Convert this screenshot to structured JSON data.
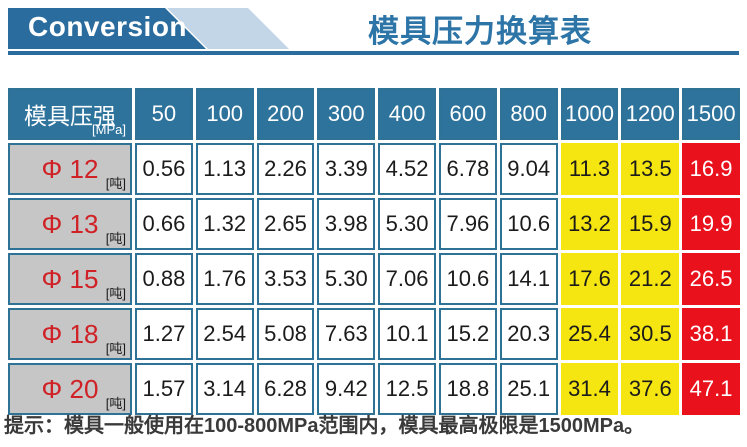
{
  "header": {
    "badge": "Conversion",
    "title": "模具压力换算表"
  },
  "table": {
    "corner": {
      "label": "模具压强",
      "unit": "[MPa]"
    },
    "columns": [
      "50",
      "100",
      "200",
      "300",
      "400",
      "600",
      "800",
      "1000",
      "1200",
      "1500"
    ],
    "rows": [
      {
        "label": "Φ 12",
        "unit": "[吨]",
        "values": [
          "0.56",
          "1.13",
          "2.26",
          "3.39",
          "4.52",
          "6.78",
          "9.04",
          "11.3",
          "13.5",
          "16.9"
        ]
      },
      {
        "label": "Φ 13",
        "unit": "[吨]",
        "values": [
          "0.66",
          "1.32",
          "2.65",
          "3.98",
          "5.30",
          "7.96",
          "10.6",
          "13.2",
          "15.9",
          "19.9"
        ]
      },
      {
        "label": "Φ 15",
        "unit": "[吨]",
        "values": [
          "0.88",
          "1.76",
          "3.53",
          "5.30",
          "7.06",
          "10.6",
          "14.1",
          "17.6",
          "21.2",
          "26.5"
        ]
      },
      {
        "label": "Φ 18",
        "unit": "[吨]",
        "values": [
          "1.27",
          "2.54",
          "5.08",
          "7.63",
          "10.1",
          "15.2",
          "20.3",
          "25.4",
          "30.5",
          "38.1"
        ]
      },
      {
        "label": "Φ 20",
        "unit": "[吨]",
        "values": [
          "1.57",
          "3.14",
          "6.28",
          "9.42",
          "12.5",
          "18.8",
          "25.1",
          "31.4",
          "37.6",
          "47.1"
        ]
      }
    ],
    "highlight": {
      "yellow": [
        7,
        8
      ],
      "red": [
        9
      ]
    }
  },
  "footer": {
    "note": "提示：模具一般使用在100-800MPa范围内，模具最高极限是1500MPa。"
  },
  "colors": {
    "banner": "#2a6c9d",
    "accent": "#c3d6e8",
    "titleBlue": "#2d74a7",
    "headerBg": "#2e739c",
    "border": "#2e7396",
    "grayBg": "#c6c6c6",
    "redText": "#cf2126",
    "yellow": "#f5e511",
    "redBg": "#e8111c",
    "noteColor": "#3a3a3a"
  }
}
